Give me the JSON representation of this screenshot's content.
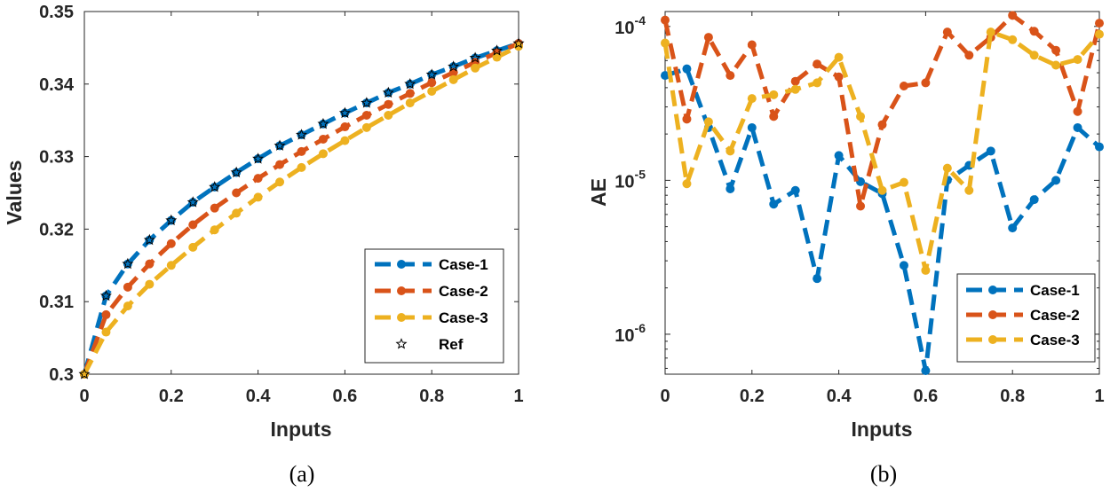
{
  "chart_data": [
    {
      "panel": "a",
      "type": "line",
      "caption": "(a)",
      "xlabel": "Inputs",
      "ylabel": "Values",
      "xlim": [
        0,
        1
      ],
      "ylim": [
        0.3,
        0.35
      ],
      "xticks": [
        "0",
        "0.2",
        "0.4",
        "0.6",
        "0.8",
        "1"
      ],
      "yticks": [
        "0.3",
        "0.31",
        "0.32",
        "0.33",
        "0.34",
        "0.35"
      ],
      "legend_position": "bottom-right",
      "x": [
        0,
        0.05,
        0.1,
        0.15,
        0.2,
        0.25,
        0.3,
        0.35,
        0.4,
        0.45,
        0.5,
        0.55,
        0.6,
        0.65,
        0.7,
        0.75,
        0.8,
        0.85,
        0.9,
        0.95,
        1
      ],
      "series": [
        {
          "name": "Case-1",
          "color": "#0072BD",
          "style": "dashed-dot",
          "values": [
            0.3,
            0.3108,
            0.3152,
            0.3185,
            0.3212,
            0.3237,
            0.3258,
            0.3278,
            0.3297,
            0.3315,
            0.333,
            0.3345,
            0.336,
            0.3374,
            0.3388,
            0.34,
            0.3413,
            0.3424,
            0.3436,
            0.3446,
            0.3456
          ]
        },
        {
          "name": "Case-2",
          "color": "#D95319",
          "style": "dashed-dot",
          "values": [
            0.3,
            0.3082,
            0.312,
            0.3152,
            0.318,
            0.3206,
            0.3229,
            0.325,
            0.327,
            0.3289,
            0.3307,
            0.3324,
            0.3341,
            0.3357,
            0.3372,
            0.3387,
            0.3402,
            0.3416,
            0.343,
            0.3443,
            0.3456
          ]
        },
        {
          "name": "Case-3",
          "color": "#EDB120",
          "style": "dashed-dot",
          "values": [
            0.3,
            0.3058,
            0.3094,
            0.3124,
            0.315,
            0.3175,
            0.3199,
            0.3222,
            0.3244,
            0.3265,
            0.3285,
            0.3304,
            0.3322,
            0.334,
            0.3357,
            0.3374,
            0.339,
            0.3406,
            0.3422,
            0.3437,
            0.3452
          ]
        },
        {
          "name": "Ref",
          "color": "#000000",
          "style": "star-markers",
          "values": [
            0.3,
            0.3108,
            0.3152,
            0.3185,
            0.3212,
            0.3237,
            0.3258,
            0.3278,
            0.3297,
            0.3315,
            0.333,
            0.3345,
            0.336,
            0.3374,
            0.3388,
            0.34,
            0.3413,
            0.3424,
            0.3436,
            0.3446,
            0.3456
          ]
        }
      ]
    },
    {
      "panel": "b",
      "type": "line",
      "scale_y": "log",
      "caption": "(b)",
      "xlabel": "Inputs",
      "ylabel": "AE",
      "xlim": [
        0,
        1
      ],
      "ylim": [
        5.5e-07,
        0.000125
      ],
      "xticks": [
        "0",
        "0.2",
        "0.4",
        "0.6",
        "0.8",
        "1"
      ],
      "ytick_base": "10",
      "ytick_exponents": [
        "-6",
        "-5",
        "-4"
      ],
      "legend_position": "bottom-right",
      "x": [
        0,
        0.05,
        0.1,
        0.15,
        0.2,
        0.25,
        0.3,
        0.35,
        0.4,
        0.45,
        0.5,
        0.55,
        0.6,
        0.65,
        0.7,
        0.75,
        0.8,
        0.85,
        0.9,
        0.95,
        1
      ],
      "series": [
        {
          "name": "Case-1",
          "color": "#0072BD",
          "values": [
            4.8e-05,
            5.3e-05,
            2.2e-05,
            8.8e-06,
            2.2e-05,
            7e-06,
            8.6e-06,
            2.3e-06,
            1.45e-05,
            9.8e-06,
            8.2e-06,
            2.8e-06,
            5.8e-07,
            1e-05,
            1.25e-05,
            1.55e-05,
            4.9e-06,
            7.5e-06,
            1e-05,
            2.2e-05,
            1.65e-05
          ]
        },
        {
          "name": "Case-2",
          "color": "#D95319",
          "values": [
            0.00011,
            2.5e-05,
            8.5e-05,
            4.8e-05,
            7.6e-05,
            2.6e-05,
            4.4e-05,
            5.7e-05,
            4.7e-05,
            6.8e-06,
            2.3e-05,
            4.1e-05,
            4.3e-05,
            9.2e-05,
            6.5e-05,
            8.5e-05,
            0.000118,
            9.3e-05,
            7e-05,
            2.8e-05,
            0.000105
          ]
        },
        {
          "name": "Case-3",
          "color": "#EDB120",
          "values": [
            7.8e-05,
            9.5e-06,
            2.4e-05,
            1.55e-05,
            3.4e-05,
            3.6e-05,
            3.9e-05,
            4.3e-05,
            6.3e-05,
            2.6e-05,
            8.6e-06,
            9.7e-06,
            2.6e-06,
            1.2e-05,
            8.6e-06,
            9.2e-05,
            8.2e-05,
            6.5e-05,
            5.6e-05,
            6.1e-05,
            8.9e-05
          ]
        }
      ]
    }
  ]
}
